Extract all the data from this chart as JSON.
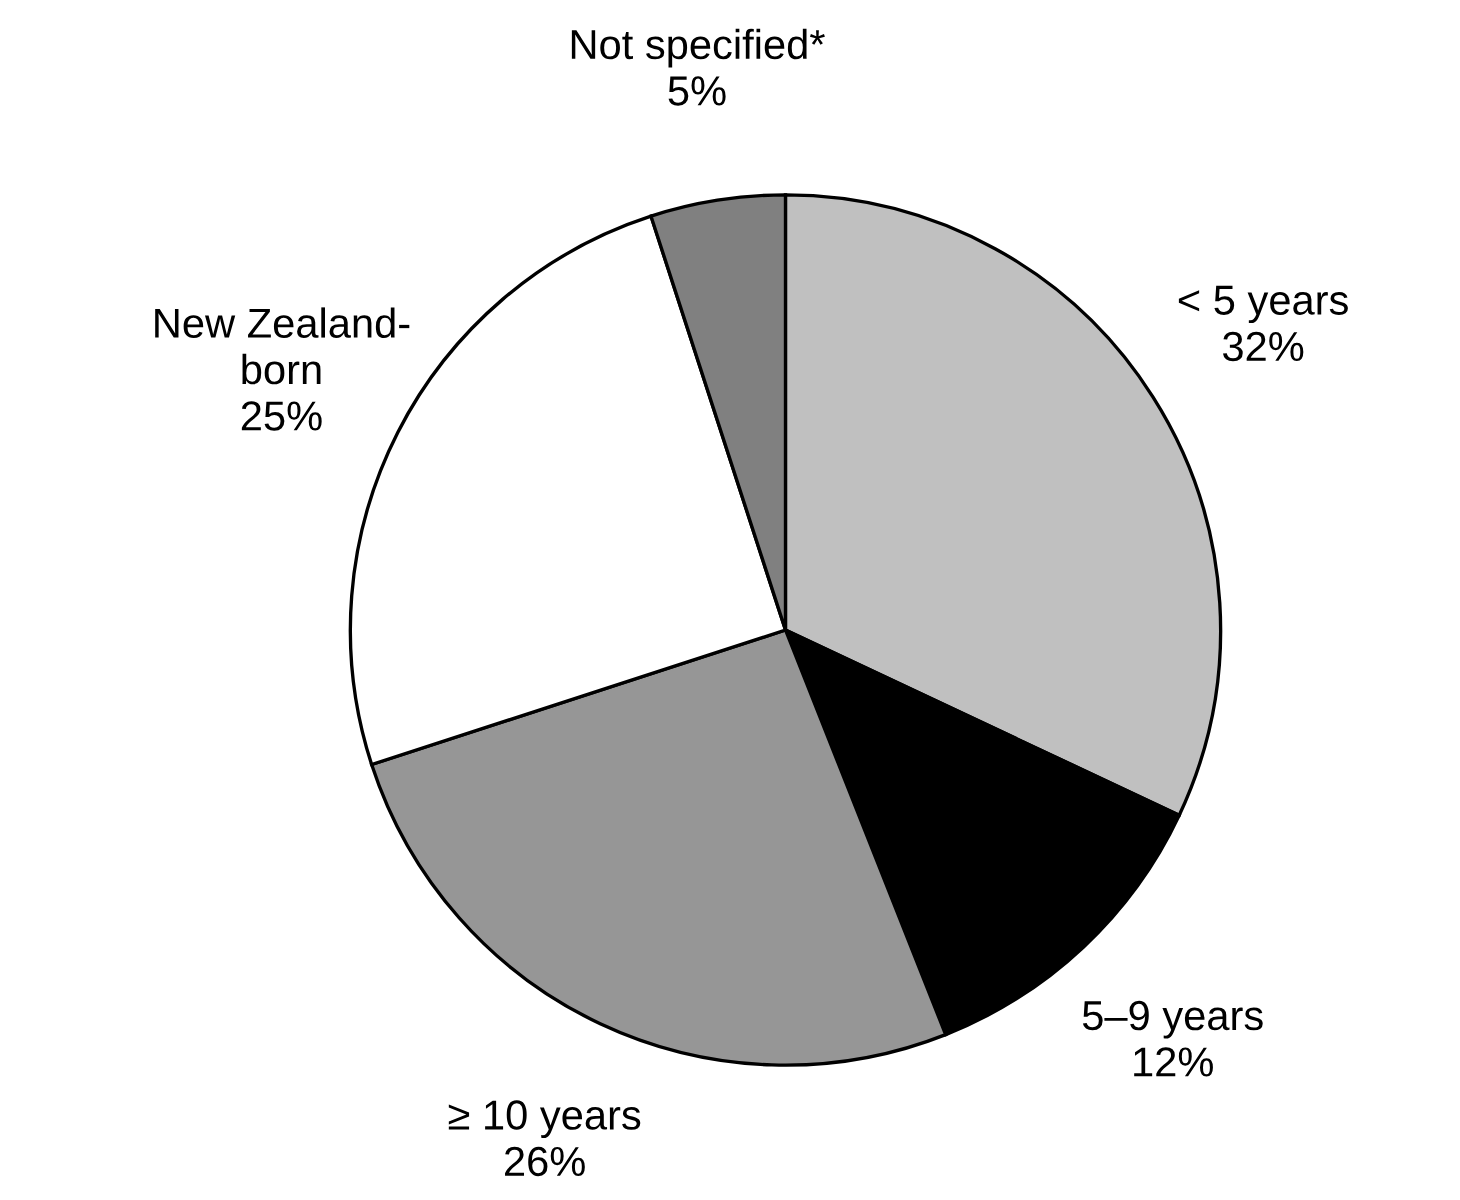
{
  "chart_data": {
    "type": "pie",
    "categories": [
      "< 5 years",
      "5–9 years",
      "≥ 10 years",
      "New Zealand-\nborn",
      "Not specified*"
    ],
    "values": [
      32,
      12,
      26,
      25,
      5
    ],
    "value_labels": [
      "32%",
      "12%",
      "26%",
      "25%",
      "5%"
    ],
    "colors": [
      "#c0c0c0",
      "#000000",
      "#969696",
      "#ffffff",
      "#808080"
    ],
    "legend": false
  }
}
